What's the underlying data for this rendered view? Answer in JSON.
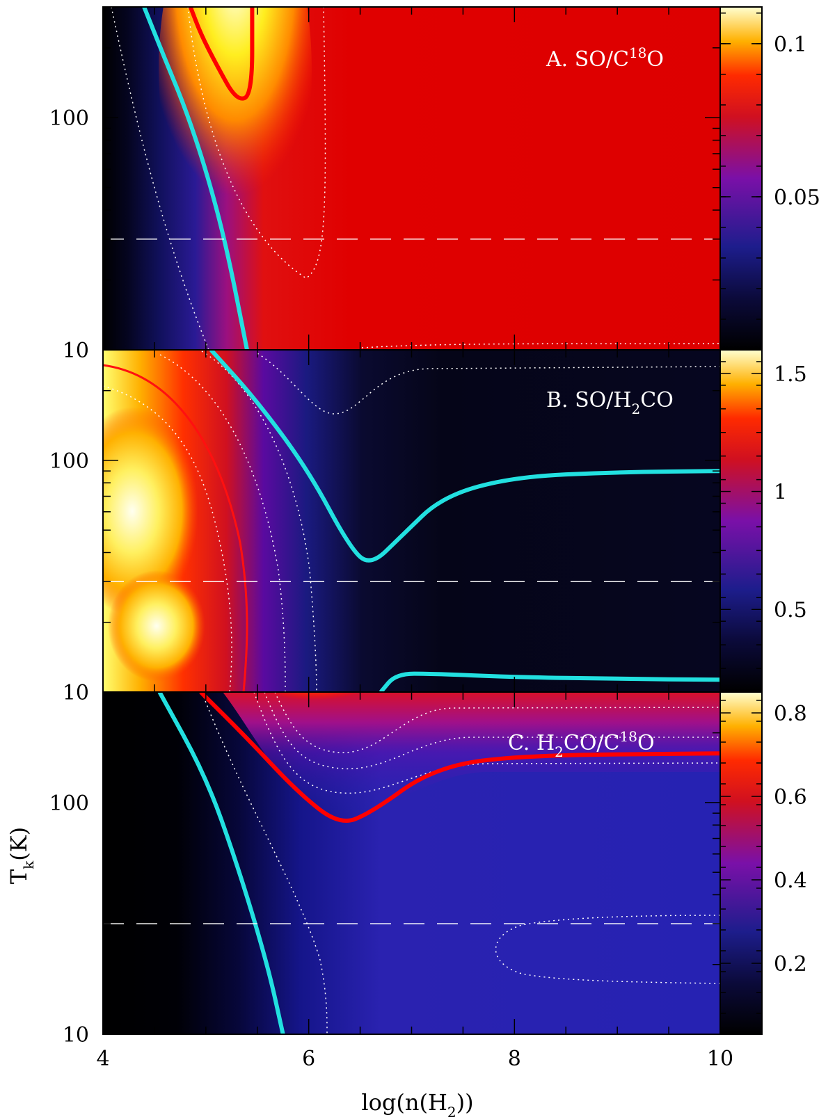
{
  "chart_data": {
    "type": "heatmap",
    "xlabel_parts": [
      "log(n(H",
      "2",
      "))"
    ],
    "ylabel_parts": [
      "T",
      "k",
      "(K)"
    ],
    "x_range": [
      4,
      10
    ],
    "x_ticks": [
      "4",
      "6",
      "8",
      "10"
    ],
    "x_tick_values": [
      4,
      6,
      8,
      10
    ],
    "y_range": [
      10,
      300
    ],
    "y_scale": "log",
    "y_tick_labels": [
      "10",
      "100"
    ],
    "y_tick_values": [
      10,
      100
    ],
    "reference_temperature": 30,
    "panels": [
      {
        "id": "A",
        "label_parts": [
          "A. SO/C",
          "18",
          "O"
        ],
        "colorbar_ticks": [
          "0.1",
          "0.05"
        ],
        "colorbar_tick_values": [
          0.1,
          0.05
        ],
        "colorbar_range": [
          0.0,
          0.112
        ],
        "cyan_contour": [
          [
            4.4,
            300
          ],
          [
            4.6,
            180
          ],
          [
            4.8,
            110
          ],
          [
            5.0,
            60
          ],
          [
            5.2,
            28
          ],
          [
            5.4,
            10
          ]
        ],
        "red_contour": [
          [
            4.85,
            300
          ],
          [
            4.95,
            230
          ],
          [
            5.1,
            170
          ],
          [
            5.3,
            118
          ],
          [
            5.45,
            125
          ],
          [
            5.45,
            300
          ]
        ]
      },
      {
        "id": "B",
        "label_parts": [
          "B. SO/H",
          "2",
          "CO"
        ],
        "colorbar_ticks": [
          "1.5",
          "1",
          "0.5"
        ],
        "colorbar_tick_values": [
          1.5,
          1.0,
          0.5
        ],
        "colorbar_range": [
          0.15,
          1.6
        ],
        "cyan_contour_upper": [
          [
            5.05,
            300
          ],
          [
            5.5,
            180
          ],
          [
            6.0,
            90
          ],
          [
            6.4,
            42
          ],
          [
            6.6,
            35
          ],
          [
            6.9,
            47
          ],
          [
            7.3,
            70
          ],
          [
            8.0,
            85
          ],
          [
            9.0,
            89
          ],
          [
            10.0,
            90
          ]
        ],
        "cyan_contour_lower": [
          [
            6.7,
            10
          ],
          [
            6.85,
            12
          ],
          [
            7.2,
            12
          ],
          [
            8.0,
            11.6
          ],
          [
            9.0,
            11.4
          ],
          [
            10.0,
            11.3
          ]
        ]
      },
      {
        "id": "C",
        "label_parts": [
          "C. H",
          "2",
          "CO/C",
          "18",
          "O"
        ],
        "colorbar_ticks": [
          "0.8",
          "0.6",
          "0.4",
          "0.2"
        ],
        "colorbar_tick_values": [
          0.8,
          0.6,
          0.4,
          0.2
        ],
        "colorbar_range": [
          0.03,
          0.85
        ],
        "cyan_contour": [
          [
            4.55,
            300
          ],
          [
            5.0,
            130
          ],
          [
            5.3,
            55
          ],
          [
            5.6,
            20
          ],
          [
            5.75,
            10
          ]
        ],
        "red_contour": [
          [
            4.95,
            300
          ],
          [
            5.4,
            190
          ],
          [
            5.9,
            110
          ],
          [
            6.3,
            80
          ],
          [
            6.6,
            90
          ],
          [
            7.2,
            140
          ],
          [
            8.0,
            160
          ],
          [
            10.0,
            163
          ]
        ]
      }
    ]
  }
}
